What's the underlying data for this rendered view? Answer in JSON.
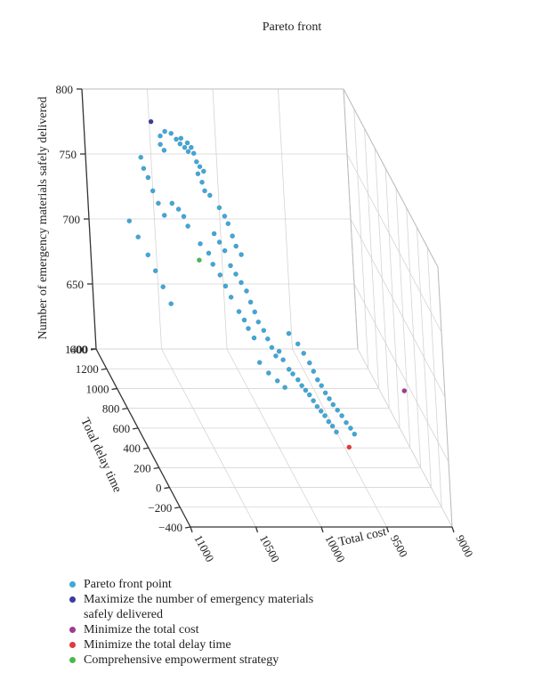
{
  "chart_data": {
    "type": "scatter",
    "title": "Pareto front",
    "xlabel": "Total cost",
    "ylabel": "Total delay time",
    "zlabel": "Number of emergency materials safely delivered",
    "xlim": [
      9000,
      11000
    ],
    "ylim": [
      -400,
      1400
    ],
    "zlim": [
      600,
      800
    ],
    "x_ticks": [
      "9000",
      "9500",
      "10000",
      "10500",
      "11000"
    ],
    "y_ticks": [
      "−400",
      "−200",
      "0",
      "200",
      "400",
      "600",
      "800",
      "1000",
      "1200",
      "1400"
    ],
    "z_ticks": [
      "600",
      "650",
      "700",
      "750",
      "800"
    ],
    "grid": true,
    "legend_position": "bottom-left",
    "colors": {
      "pareto": "#3fa7d9",
      "max_materials": "#3b3b9e",
      "min_cost": "#a03a8f",
      "min_delay": "#e03a3a",
      "comprehensive": "#4cb84c"
    },
    "series": [
      {
        "name": "Pareto front point",
        "color": "#3fa7d9",
        "points": [
          [
            10420,
            1300,
            775
          ],
          [
            10380,
            1280,
            775
          ],
          [
            10350,
            1260,
            772
          ],
          [
            10330,
            1240,
            770
          ],
          [
            10300,
            1230,
            768
          ],
          [
            10280,
            1215,
            766
          ],
          [
            10310,
            1270,
            772
          ],
          [
            10270,
            1250,
            770
          ],
          [
            10250,
            1230,
            768
          ],
          [
            10240,
            1210,
            765
          ],
          [
            10450,
            1320,
            770
          ],
          [
            10460,
            1300,
            765
          ],
          [
            10440,
            1280,
            762
          ],
          [
            10230,
            1190,
            760
          ],
          [
            10210,
            1180,
            757
          ],
          [
            10190,
            1160,
            755
          ],
          [
            10220,
            1200,
            750
          ],
          [
            10200,
            1180,
            745
          ],
          [
            10190,
            1160,
            740
          ],
          [
            10160,
            1140,
            738
          ],
          [
            10600,
            1340,
            752
          ],
          [
            10590,
            1320,
            745
          ],
          [
            10560,
            1320,
            738
          ],
          [
            10540,
            1290,
            730
          ],
          [
            10510,
            1270,
            722
          ],
          [
            10480,
            1240,
            715
          ],
          [
            10420,
            1230,
            725
          ],
          [
            10380,
            1210,
            722
          ],
          [
            10350,
            1190,
            718
          ],
          [
            10330,
            1170,
            712
          ],
          [
            10100,
            1120,
            730
          ],
          [
            10070,
            1100,
            725
          ],
          [
            10050,
            1090,
            720
          ],
          [
            10030,
            1070,
            712
          ],
          [
            10010,
            1060,
            705
          ],
          [
            9980,
            1040,
            700
          ],
          [
            10150,
            1120,
            710
          ],
          [
            10120,
            1100,
            705
          ],
          [
            10090,
            1080,
            700
          ],
          [
            10060,
            1060,
            690
          ],
          [
            10030,
            1040,
            685
          ],
          [
            10000,
            1020,
            680
          ],
          [
            9970,
            1000,
            675
          ],
          [
            9950,
            980,
            668
          ],
          [
            9930,
            960,
            662
          ],
          [
            9910,
            950,
            655
          ],
          [
            9880,
            930,
            650
          ],
          [
            9860,
            910,
            645
          ],
          [
            9840,
            890,
            640
          ],
          [
            9820,
            870,
            635
          ],
          [
            10250,
            1150,
            700
          ],
          [
            10200,
            1120,
            695
          ],
          [
            10180,
            1100,
            688
          ],
          [
            10140,
            1070,
            682
          ],
          [
            10110,
            1050,
            675
          ],
          [
            10080,
            1030,
            668
          ],
          [
            10040,
            990,
            660
          ],
          [
            10010,
            970,
            655
          ],
          [
            9990,
            950,
            650
          ],
          [
            9960,
            920,
            645
          ],
          [
            9800,
            850,
            640
          ],
          [
            9780,
            830,
            635
          ],
          [
            9750,
            800,
            630
          ],
          [
            9730,
            780,
            628
          ],
          [
            9700,
            760,
            625
          ],
          [
            9680,
            740,
            622
          ],
          [
            9660,
            720,
            620
          ],
          [
            9640,
            700,
            618
          ],
          [
            9620,
            680,
            615
          ],
          [
            9600,
            660,
            612
          ],
          [
            9580,
            640,
            610
          ],
          [
            9560,
            620,
            608
          ],
          [
            9540,
            600,
            605
          ],
          [
            9520,
            580,
            603
          ],
          [
            9500,
            560,
            600
          ],
          [
            9700,
            900,
            650
          ],
          [
            9650,
            860,
            645
          ],
          [
            9620,
            830,
            640
          ],
          [
            9590,
            800,
            635
          ],
          [
            9570,
            780,
            630
          ],
          [
            9550,
            760,
            625
          ],
          [
            9530,
            740,
            622
          ],
          [
            9510,
            720,
            618
          ],
          [
            9490,
            700,
            615
          ],
          [
            9470,
            680,
            612
          ],
          [
            9450,
            650,
            610
          ],
          [
            9430,
            620,
            608
          ],
          [
            9410,
            590,
            605
          ],
          [
            9390,
            560,
            603
          ],
          [
            9370,
            540,
            600
          ],
          [
            10700,
            1380,
            700
          ],
          [
            10650,
            1350,
            690
          ],
          [
            10600,
            1300,
            680
          ],
          [
            10560,
            1270,
            670
          ],
          [
            10520,
            1240,
            660
          ],
          [
            10480,
            1200,
            650
          ],
          [
            9900,
            1000,
            620
          ],
          [
            9850,
            960,
            615
          ],
          [
            9800,
            920,
            612
          ],
          [
            9760,
            880,
            610
          ]
        ]
      },
      {
        "name": "Maximize the number of emergency materials safely delivered",
        "color": "#3b3b9e",
        "points": [
          [
            10500,
            1360,
            778
          ]
        ]
      },
      {
        "name": "Minimize the total cost",
        "color": "#a03a8f",
        "points": [
          [
            9050,
            320,
            650
          ]
        ]
      },
      {
        "name": "Minimize the total delay time",
        "color": "#e03a3a",
        "points": [
          [
            9700,
            -250,
            650
          ]
        ]
      },
      {
        "name": "Comprehensive empowerment strategy",
        "color": "#4cb84c",
        "points": [
          [
            10300,
            1050,
            695
          ]
        ]
      }
    ]
  }
}
